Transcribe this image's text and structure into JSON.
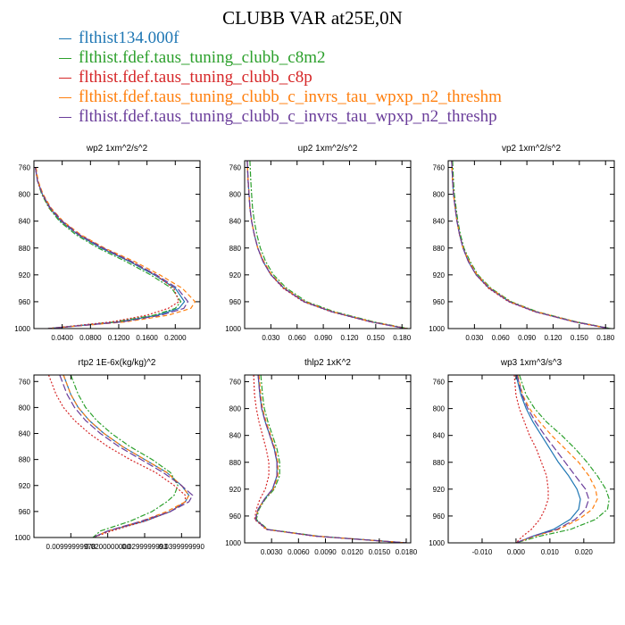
{
  "title": "CLUBB VAR at25E,0N",
  "legend": [
    {
      "label": "flthist134.000f",
      "color": "#1f77b4"
    },
    {
      "label": "flthist.fdef.taus_tuning_clubb_c8m2",
      "color": "#2ca02c"
    },
    {
      "label": "flthist.fdef.taus_tuning_clubb_c8p",
      "color": "#d62728"
    },
    {
      "label": "flthist.fdef.taus_tuning_clubb_c_invrs_tau_wpxp_n2_threshm",
      "color": "#ff7f0e"
    },
    {
      "label": "flthist.fdef.taus_tuning_clubb_c_invrs_tau_wpxp_n2_threshp",
      "color": "#6a3d9a"
    }
  ],
  "chart_data": [
    {
      "type": "line",
      "title": "wp2   1xm^2/s^2",
      "xlim": [
        0,
        0.235
      ],
      "ylim": [
        1000,
        750
      ],
      "xticks": [
        0.04,
        0.08,
        0.12,
        0.16,
        0.2
      ],
      "xtick_labels": [
        "0.0400",
        "0.0800",
        "0.1200",
        "0.1600",
        "0.2000"
      ],
      "yticks": [
        760,
        800,
        840,
        880,
        920,
        960,
        1000
      ],
      "y": [
        760,
        780,
        800,
        820,
        840,
        860,
        880,
        900,
        920,
        940,
        960,
        970,
        980,
        990,
        1000
      ],
      "series": [
        {
          "values": [
            0.002,
            0.005,
            0.012,
            0.022,
            0.038,
            0.062,
            0.095,
            0.135,
            0.17,
            0.2,
            0.213,
            0.205,
            0.175,
            0.12,
            0.02
          ]
        },
        {
          "values": [
            0.002,
            0.005,
            0.011,
            0.021,
            0.036,
            0.059,
            0.091,
            0.13,
            0.165,
            0.195,
            0.208,
            0.2,
            0.17,
            0.115,
            0.02
          ]
        },
        {
          "values": [
            0.002,
            0.005,
            0.012,
            0.022,
            0.039,
            0.063,
            0.097,
            0.137,
            0.172,
            0.198,
            0.205,
            0.19,
            0.16,
            0.11,
            0.02
          ]
        },
        {
          "values": [
            0.003,
            0.006,
            0.013,
            0.024,
            0.041,
            0.066,
            0.1,
            0.142,
            0.178,
            0.21,
            0.228,
            0.222,
            0.19,
            0.13,
            0.02
          ]
        },
        {
          "values": [
            0.002,
            0.005,
            0.012,
            0.023,
            0.04,
            0.064,
            0.098,
            0.138,
            0.173,
            0.203,
            0.218,
            0.212,
            0.18,
            0.125,
            0.02
          ]
        }
      ]
    },
    {
      "type": "line",
      "title": "up2   1xm^2/s^2",
      "xlim": [
        0,
        0.19
      ],
      "ylim": [
        1000,
        750
      ],
      "xticks": [
        0.03,
        0.06,
        0.09,
        0.12,
        0.15,
        0.18
      ],
      "xtick_labels": [
        "0.030",
        "0.060",
        "0.090",
        "0.120",
        "0.150",
        "0.180"
      ],
      "yticks": [
        760,
        800,
        840,
        880,
        920,
        960,
        1000
      ],
      "y": [
        750,
        780,
        800,
        820,
        840,
        860,
        880,
        900,
        920,
        940,
        960,
        975,
        990,
        1000
      ],
      "series": [
        {
          "values": [
            0.003,
            0.004,
            0.005,
            0.006,
            0.008,
            0.011,
            0.015,
            0.021,
            0.03,
            0.045,
            0.068,
            0.1,
            0.145,
            0.185
          ]
        },
        {
          "values": [
            0.006,
            0.007,
            0.008,
            0.009,
            0.011,
            0.014,
            0.018,
            0.024,
            0.033,
            0.048,
            0.071,
            0.103,
            0.148,
            0.187
          ]
        },
        {
          "values": [
            0.003,
            0.004,
            0.005,
            0.006,
            0.008,
            0.011,
            0.015,
            0.021,
            0.03,
            0.044,
            0.067,
            0.099,
            0.144,
            0.184
          ]
        },
        {
          "values": [
            0.003,
            0.004,
            0.005,
            0.006,
            0.008,
            0.011,
            0.015,
            0.022,
            0.031,
            0.046,
            0.069,
            0.101,
            0.146,
            0.186
          ]
        },
        {
          "values": [
            0.003,
            0.004,
            0.005,
            0.006,
            0.008,
            0.011,
            0.015,
            0.021,
            0.03,
            0.045,
            0.068,
            0.1,
            0.145,
            0.185
          ]
        }
      ]
    },
    {
      "type": "line",
      "title": "vp2   1xm^2/s^2",
      "xlim": [
        0,
        0.19
      ],
      "ylim": [
        1000,
        750
      ],
      "xticks": [
        0.03,
        0.06,
        0.09,
        0.12,
        0.15,
        0.18
      ],
      "xtick_labels": [
        "0.030",
        "0.060",
        "0.090",
        "0.120",
        "0.150",
        "0.180"
      ],
      "yticks": [
        760,
        800,
        840,
        880,
        920,
        960,
        1000
      ],
      "y": [
        750,
        780,
        800,
        820,
        840,
        860,
        880,
        900,
        920,
        940,
        960,
        975,
        990,
        1000
      ],
      "series": [
        {
          "values": [
            0.004,
            0.005,
            0.006,
            0.008,
            0.01,
            0.013,
            0.017,
            0.023,
            0.032,
            0.047,
            0.07,
            0.1,
            0.145,
            0.185
          ]
        },
        {
          "values": [
            0.005,
            0.006,
            0.007,
            0.009,
            0.011,
            0.014,
            0.018,
            0.025,
            0.034,
            0.049,
            0.072,
            0.102,
            0.147,
            0.186
          ]
        },
        {
          "values": [
            0.004,
            0.005,
            0.006,
            0.008,
            0.01,
            0.013,
            0.017,
            0.023,
            0.032,
            0.046,
            0.069,
            0.099,
            0.144,
            0.184
          ]
        },
        {
          "values": [
            0.004,
            0.005,
            0.006,
            0.008,
            0.01,
            0.013,
            0.017,
            0.024,
            0.033,
            0.048,
            0.071,
            0.101,
            0.146,
            0.185
          ]
        },
        {
          "values": [
            0.004,
            0.005,
            0.006,
            0.008,
            0.01,
            0.013,
            0.017,
            0.023,
            0.032,
            0.047,
            0.07,
            0.1,
            0.145,
            0.185
          ]
        }
      ]
    },
    {
      "type": "line",
      "title": "rtp2   1E-6x(kg/kg)^2",
      "xlim": [
        0,
        0.045
      ],
      "ylim": [
        1000,
        750
      ],
      "xticks": [
        0.01,
        0.02,
        0.03,
        0.04
      ],
      "xtick_labels": [
        "0.00999999978",
        "0.0200000000",
        "0.0299999993",
        "0.0399999990"
      ],
      "yticks": [
        760,
        800,
        840,
        880,
        920,
        960,
        1000
      ],
      "y": [
        750,
        780,
        800,
        820,
        840,
        860,
        880,
        900,
        920,
        935,
        945,
        960,
        975,
        990,
        1000
      ],
      "series": [
        {
          "values": [
            0.008,
            0.01,
            0.012,
            0.015,
            0.019,
            0.024,
            0.03,
            0.036,
            0.04,
            0.042,
            0.041,
            0.037,
            0.03,
            0.02,
            0.016
          ]
        },
        {
          "values": [
            0.01,
            0.012,
            0.014,
            0.017,
            0.021,
            0.026,
            0.032,
            0.037,
            0.039,
            0.038,
            0.036,
            0.032,
            0.026,
            0.018,
            0.016
          ]
        },
        {
          "values": [
            0.004,
            0.006,
            0.008,
            0.011,
            0.015,
            0.02,
            0.026,
            0.033,
            0.038,
            0.041,
            0.041,
            0.037,
            0.03,
            0.021,
            0.016
          ]
        },
        {
          "values": [
            0.008,
            0.01,
            0.012,
            0.015,
            0.019,
            0.024,
            0.03,
            0.036,
            0.04,
            0.042,
            0.041,
            0.036,
            0.029,
            0.02,
            0.016
          ]
        },
        {
          "values": [
            0.007,
            0.009,
            0.011,
            0.014,
            0.018,
            0.023,
            0.029,
            0.035,
            0.04,
            0.043,
            0.042,
            0.037,
            0.029,
            0.02,
            0.016
          ]
        }
      ]
    },
    {
      "type": "line",
      "title": "thlp2   1xK^2",
      "xlim": [
        0,
        0.0185
      ],
      "ylim": [
        1000,
        750
      ],
      "xticks": [
        0.003,
        0.006,
        0.009,
        0.012,
        0.015,
        0.018
      ],
      "xtick_labels": [
        "0.0030",
        "0.0060",
        "0.0090",
        "0.0120",
        "0.0150",
        "0.0180"
      ],
      "yticks": [
        760,
        800,
        840,
        880,
        920,
        960,
        1000
      ],
      "y": [
        750,
        780,
        800,
        820,
        840,
        860,
        880,
        900,
        920,
        935,
        950,
        965,
        980,
        990,
        1000
      ],
      "series": [
        {
          "values": [
            0.0015,
            0.0017,
            0.0019,
            0.0023,
            0.0028,
            0.0033,
            0.0036,
            0.0036,
            0.0031,
            0.0022,
            0.0015,
            0.0012,
            0.0025,
            0.008,
            0.018
          ]
        },
        {
          "values": [
            0.0018,
            0.002,
            0.0022,
            0.0026,
            0.0031,
            0.0036,
            0.0039,
            0.0039,
            0.0033,
            0.0023,
            0.0016,
            0.0013,
            0.0026,
            0.0082,
            0.018
          ]
        },
        {
          "values": [
            0.001,
            0.0011,
            0.0013,
            0.0016,
            0.002,
            0.0024,
            0.0027,
            0.0027,
            0.0023,
            0.0017,
            0.0013,
            0.0011,
            0.0024,
            0.0078,
            0.018
          ]
        },
        {
          "values": [
            0.0016,
            0.0018,
            0.002,
            0.0024,
            0.0029,
            0.0034,
            0.0037,
            0.0037,
            0.0032,
            0.0022,
            0.0015,
            0.0012,
            0.0025,
            0.008,
            0.018
          ]
        },
        {
          "values": [
            0.0015,
            0.0017,
            0.0019,
            0.0023,
            0.0028,
            0.0033,
            0.0036,
            0.0036,
            0.0031,
            0.0022,
            0.0015,
            0.0012,
            0.0025,
            0.008,
            0.018
          ]
        }
      ]
    },
    {
      "type": "line",
      "title": "wp3   1xm^3/s^3",
      "xlim": [
        -0.02,
        0.029
      ],
      "ylim": [
        1000,
        750
      ],
      "xticks": [
        -0.01,
        0.0,
        0.01,
        0.02
      ],
      "xtick_labels": [
        "-0.010",
        "0.000",
        "0.010",
        "0.020"
      ],
      "yticks": [
        760,
        800,
        840,
        880,
        920,
        960,
        1000
      ],
      "y": [
        750,
        780,
        800,
        820,
        840,
        860,
        880,
        900,
        920,
        935,
        950,
        965,
        980,
        990,
        1000
      ],
      "series": [
        {
          "values": [
            0.0,
            0.0015,
            0.003,
            0.005,
            0.0075,
            0.01,
            0.0125,
            0.0155,
            0.018,
            0.019,
            0.0185,
            0.016,
            0.011,
            0.005,
            0.0
          ]
        },
        {
          "values": [
            0.001,
            0.003,
            0.0055,
            0.009,
            0.0135,
            0.0175,
            0.021,
            0.024,
            0.0265,
            0.0275,
            0.027,
            0.0235,
            0.016,
            0.007,
            0.0
          ]
        },
        {
          "values": [
            -0.0005,
            0.0,
            0.001,
            0.0025,
            0.004,
            0.006,
            0.0075,
            0.009,
            0.0095,
            0.0095,
            0.0085,
            0.007,
            0.0045,
            0.002,
            0.0
          ]
        },
        {
          "values": [
            0.0005,
            0.002,
            0.004,
            0.007,
            0.0105,
            0.0145,
            0.0185,
            0.0215,
            0.0235,
            0.024,
            0.0225,
            0.0185,
            0.0125,
            0.0055,
            0.0
          ]
        },
        {
          "values": [
            0.0003,
            0.0018,
            0.0035,
            0.0058,
            0.0085,
            0.0115,
            0.0145,
            0.0175,
            0.0205,
            0.0215,
            0.0205,
            0.0175,
            0.012,
            0.005,
            0.0
          ]
        }
      ]
    }
  ]
}
